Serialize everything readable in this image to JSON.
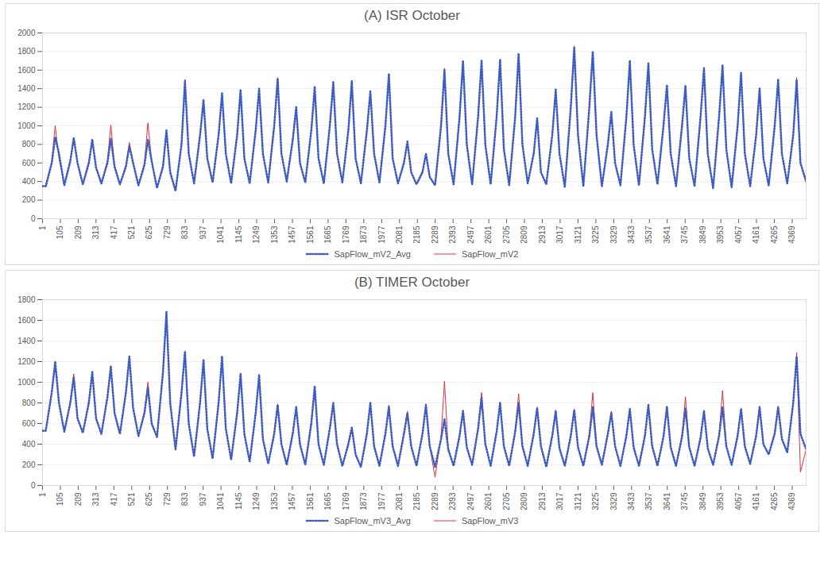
{
  "chart_data": [
    {
      "type": "line",
      "title": "(A) ISR October",
      "x": [
        1,
        20,
        55,
        75,
        97,
        128,
        163,
        183,
        205,
        236,
        271,
        291,
        313,
        344,
        379,
        399,
        421,
        452,
        487,
        507,
        529,
        560,
        595,
        615,
        637,
        668,
        703,
        723,
        745,
        776,
        811,
        831,
        853,
        884,
        919,
        939,
        961,
        992,
        1027,
        1047,
        1069,
        1100,
        1135,
        1155,
        1177,
        1208,
        1243,
        1263,
        1285,
        1316,
        1351,
        1371,
        1393,
        1424,
        1459,
        1479,
        1501,
        1532,
        1567,
        1587,
        1609,
        1640,
        1675,
        1695,
        1717,
        1748,
        1783,
        1803,
        1825,
        1856,
        1891,
        1911,
        1933,
        1964,
        1999,
        2019,
        2041,
        2072,
        2107,
        2127,
        2149,
        2180,
        2215,
        2235,
        2257,
        2288,
        2323,
        2343,
        2365,
        2396,
        2431,
        2451,
        2473,
        2504,
        2539,
        2559,
        2581,
        2612,
        2647,
        2667,
        2689,
        2720,
        2755,
        2775,
        2797,
        2828,
        2863,
        2883,
        2905,
        2936,
        2971,
        2991,
        3013,
        3044,
        3079,
        3099,
        3121,
        3152,
        3187,
        3207,
        3229,
        3260,
        3295,
        3315,
        3337,
        3368,
        3403,
        3423,
        3445,
        3476,
        3511,
        3531,
        3553,
        3584,
        3619,
        3639,
        3661,
        3692,
        3727,
        3747,
        3769,
        3800,
        3835,
        3855,
        3877,
        3908,
        3943,
        3963,
        3985,
        4016,
        4051,
        4071,
        4093,
        4124,
        4159,
        4179,
        4201,
        4232,
        4267,
        4287,
        4309,
        4340,
        4375,
        4395,
        4417,
        4450
      ],
      "series": [
        {
          "name": "SapFlow_mV2_Avg",
          "color": "#3b5cc4",
          "line_style": "dotted",
          "values": [
            350,
            350,
            600,
            880,
            700,
            360,
            620,
            870,
            600,
            370,
            600,
            850,
            550,
            380,
            600,
            860,
            560,
            370,
            560,
            780,
            600,
            360,
            580,
            850,
            620,
            330,
            560,
            950,
            500,
            300,
            800,
            1480,
            700,
            380,
            900,
            1280,
            650,
            390,
            900,
            1350,
            700,
            380,
            900,
            1390,
            650,
            380,
            950,
            1400,
            700,
            390,
            1000,
            1510,
            700,
            400,
            850,
            1200,
            600,
            390,
            950,
            1420,
            650,
            380,
            1000,
            1470,
            700,
            390,
            950,
            1480,
            650,
            380,
            950,
            1370,
            700,
            390,
            1000,
            1560,
            650,
            380,
            600,
            830,
            500,
            370,
            500,
            700,
            450,
            360,
            1000,
            1600,
            700,
            370,
            1100,
            1700,
            800,
            370,
            1100,
            1700,
            800,
            370,
            1100,
            1710,
            750,
            360,
            1100,
            1780,
            800,
            380,
            700,
            1080,
            500,
            370,
            900,
            1390,
            700,
            340,
            1200,
            1850,
            900,
            350,
            1200,
            1800,
            900,
            350,
            800,
            1150,
            600,
            360,
            1100,
            1700,
            800,
            360,
            1100,
            1670,
            750,
            370,
            1000,
            1440,
            700,
            350,
            1000,
            1430,
            650,
            350,
            1100,
            1620,
            700,
            330,
            1100,
            1650,
            750,
            340,
            1000,
            1570,
            700,
            350,
            900,
            1400,
            650,
            360,
            1000,
            1500,
            700,
            380,
            900,
            1490,
            600,
            400
          ]
        },
        {
          "name": "SapFlow_mV2",
          "color": "#e0303a",
          "line_style": "solid",
          "values": [
            350,
            350,
            620,
            1000,
            650,
            360,
            640,
            860,
            600,
            370,
            620,
            840,
            550,
            380,
            620,
            1010,
            560,
            370,
            580,
            820,
            600,
            360,
            600,
            1030,
            620,
            330,
            580,
            940,
            500,
            300,
            820,
            1500,
            700,
            380,
            920,
            1260,
            650,
            390,
            920,
            1340,
            700,
            380,
            920,
            1380,
            650,
            380,
            970,
            1390,
            700,
            390,
            1020,
            1520,
            700,
            400,
            870,
            1190,
            600,
            390,
            970,
            1410,
            650,
            380,
            1020,
            1460,
            700,
            390,
            970,
            1470,
            650,
            380,
            970,
            1380,
            700,
            390,
            1020,
            1550,
            650,
            380,
            620,
            820,
            500,
            370,
            520,
            690,
            450,
            360,
            1020,
            1620,
            700,
            370,
            1120,
            1690,
            800,
            370,
            1120,
            1690,
            800,
            370,
            1120,
            1700,
            750,
            360,
            1120,
            1760,
            800,
            380,
            720,
            1070,
            500,
            370,
            920,
            1380,
            700,
            340,
            1220,
            1860,
            900,
            350,
            1220,
            1790,
            900,
            350,
            820,
            1140,
            600,
            360,
            1120,
            1690,
            800,
            360,
            1120,
            1680,
            750,
            370,
            1020,
            1430,
            700,
            350,
            1020,
            1440,
            650,
            350,
            1120,
            1630,
            700,
            330,
            1120,
            1640,
            750,
            340,
            1020,
            1560,
            700,
            350,
            920,
            1410,
            650,
            360,
            1020,
            1490,
            700,
            380,
            920,
            1520,
            600,
            400
          ]
        }
      ],
      "xlim": [
        1,
        4450
      ],
      "xticks": [
        1,
        105,
        209,
        313,
        417,
        521,
        625,
        729,
        833,
        937,
        1041,
        1145,
        1249,
        1353,
        1457,
        1561,
        1665,
        1769,
        1873,
        1977,
        2081,
        2185,
        2289,
        2393,
        2497,
        2601,
        2705,
        2809,
        2913,
        3017,
        3121,
        3225,
        3329,
        3433,
        3537,
        3641,
        3745,
        3849,
        3953,
        4057,
        4161,
        4265,
        4369
      ],
      "ylim": [
        0,
        2000
      ],
      "yticks": [
        0,
        200,
        400,
        600,
        800,
        1000,
        1200,
        1400,
        1600,
        1800,
        2000
      ],
      "grid": true,
      "legend": "bottom"
    },
    {
      "type": "line",
      "title": "(B) TIMER October",
      "x": [
        1,
        20,
        55,
        75,
        97,
        128,
        163,
        183,
        205,
        236,
        271,
        291,
        313,
        344,
        379,
        399,
        421,
        452,
        487,
        507,
        529,
        560,
        595,
        615,
        637,
        668,
        703,
        723,
        745,
        776,
        811,
        831,
        853,
        884,
        919,
        939,
        961,
        992,
        1027,
        1047,
        1069,
        1100,
        1135,
        1155,
        1177,
        1208,
        1243,
        1263,
        1285,
        1316,
        1351,
        1371,
        1393,
        1424,
        1459,
        1479,
        1501,
        1532,
        1567,
        1587,
        1609,
        1640,
        1675,
        1695,
        1717,
        1748,
        1783,
        1803,
        1825,
        1856,
        1891,
        1911,
        1933,
        1964,
        1999,
        2019,
        2041,
        2072,
        2107,
        2127,
        2149,
        2180,
        2215,
        2235,
        2257,
        2288,
        2323,
        2343,
        2365,
        2396,
        2431,
        2451,
        2473,
        2504,
        2539,
        2559,
        2581,
        2612,
        2647,
        2667,
        2689,
        2720,
        2755,
        2775,
        2797,
        2828,
        2863,
        2883,
        2905,
        2936,
        2971,
        2991,
        3013,
        3044,
        3079,
        3099,
        3121,
        3152,
        3187,
        3207,
        3229,
        3260,
        3295,
        3315,
        3337,
        3368,
        3403,
        3423,
        3445,
        3476,
        3511,
        3531,
        3553,
        3584,
        3619,
        3639,
        3661,
        3692,
        3727,
        3747,
        3769,
        3800,
        3835,
        3855,
        3877,
        3908,
        3943,
        3963,
        3985,
        4016,
        4051,
        4071,
        4093,
        4124,
        4159,
        4179,
        4201,
        4232,
        4267,
        4287,
        4309,
        4340,
        4375,
        4395,
        4417,
        4450
      ],
      "series": [
        {
          "name": "SapFlow_mV3_Avg",
          "color": "#3b5cc4",
          "line_style": "dotted",
          "values": [
            530,
            530,
            900,
            1200,
            800,
            520,
            800,
            1050,
            650,
            510,
            800,
            1100,
            650,
            500,
            850,
            1150,
            700,
            500,
            900,
            1250,
            750,
            480,
            700,
            950,
            600,
            470,
            1100,
            1680,
            800,
            350,
            900,
            1300,
            600,
            280,
            800,
            1220,
            550,
            260,
            800,
            1250,
            550,
            250,
            700,
            1080,
            500,
            230,
            700,
            1070,
            450,
            210,
            500,
            780,
            400,
            200,
            500,
            760,
            400,
            200,
            600,
            960,
            400,
            200,
            550,
            800,
            400,
            190,
            400,
            560,
            300,
            180,
            500,
            800,
            380,
            190,
            500,
            760,
            380,
            190,
            500,
            700,
            380,
            190,
            500,
            780,
            380,
            180,
            450,
            640,
            350,
            190,
            480,
            720,
            370,
            200,
            550,
            850,
            400,
            190,
            520,
            800,
            380,
            190,
            520,
            800,
            380,
            190,
            500,
            750,
            380,
            180,
            480,
            720,
            360,
            190,
            480,
            730,
            370,
            190,
            480,
            760,
            380,
            200,
            500,
            700,
            380,
            190,
            480,
            740,
            370,
            190,
            480,
            780,
            380,
            190,
            470,
            760,
            370,
            190,
            470,
            750,
            370,
            190,
            460,
            720,
            360,
            200,
            480,
            760,
            380,
            200,
            480,
            740,
            380,
            210,
            480,
            760,
            400,
            300,
            500,
            760,
            450,
            320,
            800,
            1250,
            500,
            350
          ]
        },
        {
          "name": "SapFlow_mV3",
          "color": "#e0303a",
          "line_style": "solid",
          "values": [
            530,
            530,
            920,
            1150,
            800,
            520,
            820,
            1080,
            650,
            510,
            820,
            1080,
            650,
            500,
            870,
            1160,
            700,
            500,
            920,
            1230,
            750,
            480,
            720,
            1000,
            600,
            470,
            1120,
            1650,
            800,
            350,
            920,
            1280,
            600,
            280,
            820,
            1200,
            550,
            260,
            820,
            1230,
            550,
            250,
            720,
            1060,
            500,
            230,
            720,
            1050,
            450,
            210,
            520,
            790,
            400,
            200,
            520,
            740,
            400,
            200,
            620,
            940,
            400,
            200,
            570,
            790,
            400,
            190,
            420,
            550,
            300,
            180,
            520,
            790,
            380,
            190,
            520,
            780,
            380,
            190,
            520,
            720,
            380,
            190,
            520,
            790,
            380,
            80,
            470,
            1010,
            350,
            190,
            500,
            730,
            370,
            200,
            570,
            900,
            400,
            190,
            540,
            790,
            380,
            190,
            540,
            890,
            380,
            190,
            520,
            760,
            380,
            180,
            500,
            730,
            360,
            190,
            500,
            740,
            370,
            190,
            500,
            900,
            380,
            200,
            520,
            720,
            380,
            190,
            500,
            750,
            370,
            190,
            500,
            790,
            380,
            190,
            490,
            770,
            370,
            190,
            490,
            860,
            370,
            190,
            480,
            730,
            360,
            200,
            500,
            920,
            380,
            200,
            500,
            750,
            380,
            210,
            500,
            770,
            400,
            300,
            520,
            770,
            450,
            320,
            820,
            1290,
            130,
            350
          ]
        }
      ],
      "xlim": [
        1,
        4450
      ],
      "xticks": [
        1,
        105,
        209,
        313,
        417,
        521,
        625,
        729,
        833,
        937,
        1041,
        1145,
        1249,
        1353,
        1457,
        1561,
        1665,
        1769,
        1873,
        1977,
        2081,
        2185,
        2289,
        2393,
        2497,
        2601,
        2705,
        2809,
        2913,
        3017,
        3121,
        3225,
        3329,
        3433,
        3537,
        3641,
        3745,
        3849,
        3953,
        4057,
        4161,
        4265,
        4369
      ],
      "ylim": [
        0,
        1800
      ],
      "yticks": [
        0,
        200,
        400,
        600,
        800,
        1000,
        1200,
        1400,
        1600,
        1800
      ],
      "grid": true,
      "legend": "bottom"
    }
  ]
}
